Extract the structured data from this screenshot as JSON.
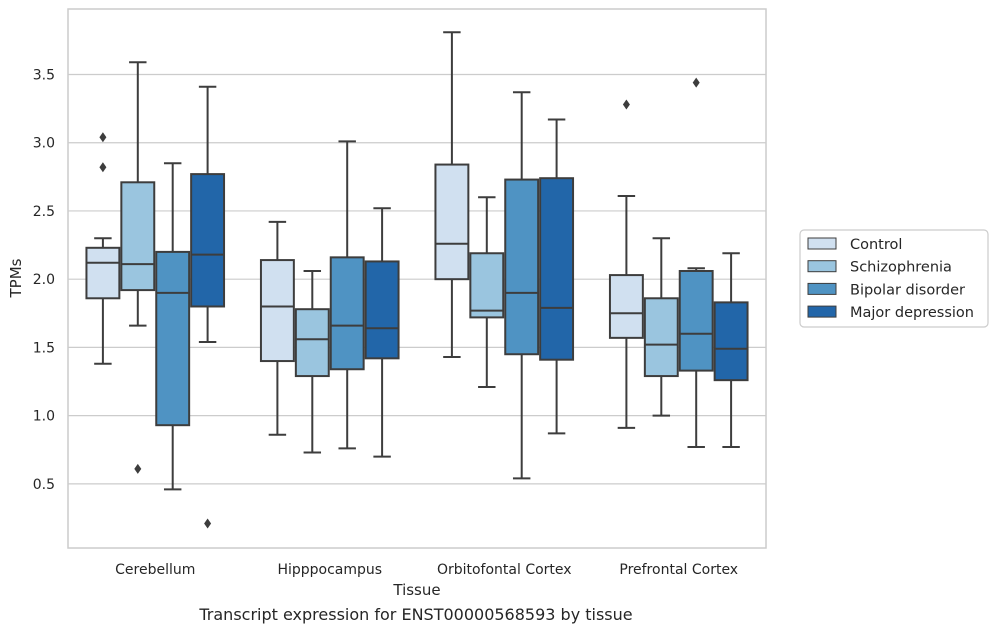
{
  "chart_data": {
    "type": "box",
    "title": "",
    "caption": "Transcript expression for ENST00000568593 by tissue",
    "xlabel": "Tissue",
    "ylabel": "TPMs",
    "ylim": [
      0.03,
      3.98
    ],
    "yticks": [
      "0.5",
      "1.0",
      "1.5",
      "2.0",
      "2.5",
      "3.0",
      "3.5"
    ],
    "categories": [
      "Cerebellum",
      "Hipppocampus",
      "Orbitofontal Cortex",
      "Prefrontal Cortex"
    ],
    "grid": "y",
    "legend_position": "right",
    "series": [
      {
        "name": "Control",
        "color": "#d0e0f0",
        "boxes": [
          {
            "whislo": 1.38,
            "q1": 1.86,
            "med": 2.12,
            "q3": 2.23,
            "whishi": 2.3,
            "fliers": [
              2.82,
              3.04
            ]
          },
          {
            "whislo": 0.86,
            "q1": 1.4,
            "med": 1.8,
            "q3": 2.14,
            "whishi": 2.42,
            "fliers": []
          },
          {
            "whislo": 1.43,
            "q1": 2.0,
            "med": 2.26,
            "q3": 2.84,
            "whishi": 3.81,
            "fliers": []
          },
          {
            "whislo": 0.91,
            "q1": 1.57,
            "med": 1.75,
            "q3": 2.03,
            "whishi": 2.61,
            "fliers": [
              3.28
            ]
          }
        ]
      },
      {
        "name": "Schizophrenia",
        "color": "#9ac5df",
        "boxes": [
          {
            "whislo": 1.66,
            "q1": 1.92,
            "med": 2.11,
            "q3": 2.71,
            "whishi": 3.59,
            "fliers": [
              0.61
            ]
          },
          {
            "whislo": 0.73,
            "q1": 1.29,
            "med": 1.56,
            "q3": 1.78,
            "whishi": 2.06,
            "fliers": []
          },
          {
            "whislo": 1.21,
            "q1": 1.72,
            "med": 1.77,
            "q3": 2.19,
            "whishi": 2.6,
            "fliers": []
          },
          {
            "whislo": 1.0,
            "q1": 1.29,
            "med": 1.52,
            "q3": 1.86,
            "whishi": 2.3,
            "fliers": []
          }
        ]
      },
      {
        "name": "Bipolar disorder",
        "color": "#4f93c3",
        "boxes": [
          {
            "whislo": 0.46,
            "q1": 0.93,
            "med": 1.9,
            "q3": 2.2,
            "whishi": 2.85,
            "fliers": []
          },
          {
            "whislo": 0.76,
            "q1": 1.34,
            "med": 1.66,
            "q3": 2.16,
            "whishi": 3.01,
            "fliers": []
          },
          {
            "whislo": 0.54,
            "q1": 1.45,
            "med": 1.9,
            "q3": 2.73,
            "whishi": 3.37,
            "fliers": []
          },
          {
            "whislo": 0.77,
            "q1": 1.33,
            "med": 1.6,
            "q3": 2.06,
            "whishi": 2.08,
            "fliers": [
              3.44
            ]
          }
        ]
      },
      {
        "name": "Major depression",
        "color": "#2266a9",
        "boxes": [
          {
            "whislo": 1.54,
            "q1": 1.8,
            "med": 2.18,
            "q3": 2.77,
            "whishi": 3.41,
            "fliers": [
              0.21
            ]
          },
          {
            "whislo": 0.7,
            "q1": 1.42,
            "med": 1.64,
            "q3": 2.13,
            "whishi": 2.52,
            "fliers": []
          },
          {
            "whislo": 0.87,
            "q1": 1.41,
            "med": 1.79,
            "q3": 2.74,
            "whishi": 3.17,
            "fliers": []
          },
          {
            "whislo": 0.77,
            "q1": 1.26,
            "med": 1.49,
            "q3": 1.83,
            "whishi": 2.19,
            "fliers": []
          }
        ]
      }
    ]
  }
}
